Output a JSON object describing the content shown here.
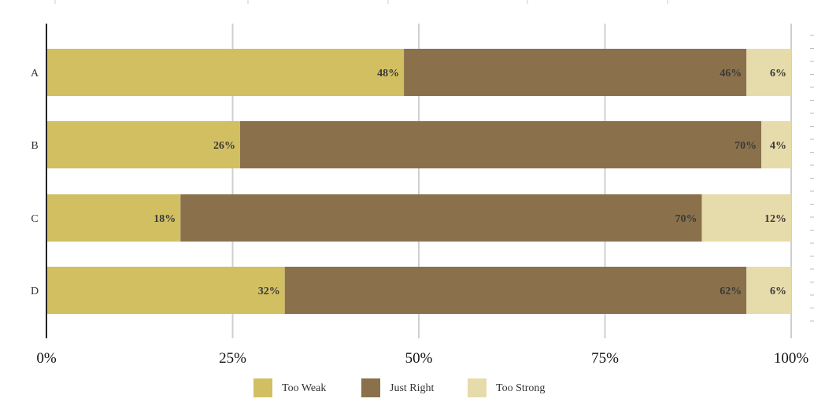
{
  "chart_data": {
    "type": "bar",
    "orientation": "horizontal",
    "stacked": true,
    "categories": [
      "A",
      "B",
      "C",
      "D"
    ],
    "series": [
      {
        "name": "Too Weak",
        "color": "#d2bf62",
        "values": [
          48,
          26,
          18,
          32
        ]
      },
      {
        "name": "Just Right",
        "color": "#8a714b",
        "values": [
          46,
          70,
          70,
          62
        ]
      },
      {
        "name": "Too Strong",
        "color": "#e6dbaa",
        "values": [
          6,
          4,
          12,
          6
        ]
      }
    ],
    "value_labels": {
      "Too Weak": [
        "48%",
        "26%",
        "18%",
        "32%"
      ],
      "Just Right": [
        "46%",
        "70%",
        "70%",
        "62%"
      ],
      "Too Strong": [
        "6%",
        "4%",
        "12%",
        "6%"
      ]
    },
    "xlim": [
      0,
      100
    ],
    "xticks": [
      0,
      25,
      50,
      75,
      100
    ],
    "xtick_labels": [
      "0%",
      "25%",
      "50%",
      "75%",
      "100%"
    ],
    "grid": true,
    "legend_position": "bottom"
  }
}
